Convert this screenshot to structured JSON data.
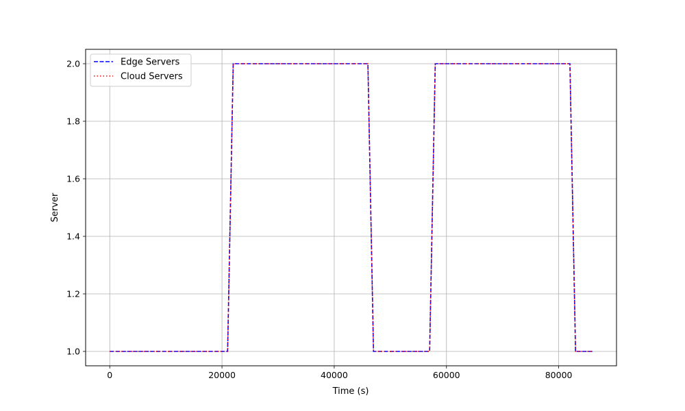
{
  "chart_data": {
    "type": "line",
    "xlabel": "Time (s)",
    "ylabel": "Server",
    "xlim": [
      -4300,
      90300
    ],
    "ylim": [
      0.95,
      2.05
    ],
    "xticks": [
      0,
      20000,
      40000,
      60000,
      80000
    ],
    "xtick_labels": [
      "0",
      "20000",
      "40000",
      "60000",
      "80000"
    ],
    "yticks": [
      1.0,
      1.2,
      1.4,
      1.6,
      1.8,
      2.0
    ],
    "ytick_labels": [
      "1.0",
      "1.2",
      "1.4",
      "1.6",
      "1.8",
      "2.0"
    ],
    "grid": true,
    "legend_position": "top-left",
    "series": [
      {
        "name": "Edge Servers",
        "color": "#0000ff",
        "linestyle": "dashed",
        "x": [
          0,
          21000,
          22000,
          46000,
          47000,
          57000,
          58000,
          82000,
          83000,
          86000
        ],
        "y": [
          1,
          1,
          2,
          2,
          1,
          1,
          2,
          2,
          1,
          1
        ]
      },
      {
        "name": "Cloud Servers",
        "color": "#ff0000",
        "linestyle": "dotted",
        "x": [
          0,
          21000,
          22000,
          46000,
          47000,
          57000,
          58000,
          82000,
          83000,
          86000
        ],
        "y": [
          1,
          1,
          2,
          2,
          1,
          1,
          2,
          2,
          1,
          1
        ]
      }
    ]
  }
}
